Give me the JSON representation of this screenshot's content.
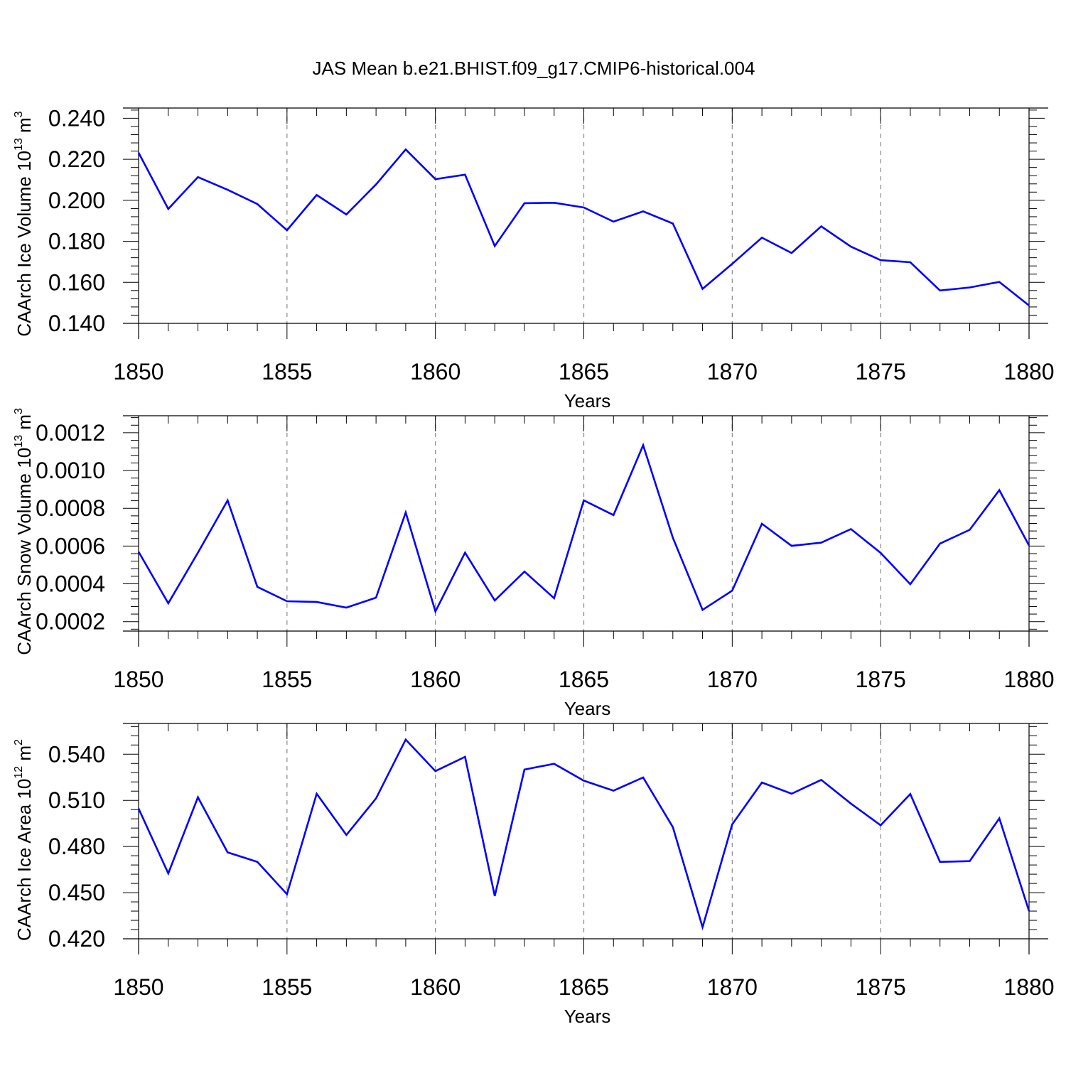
{
  "title": "JAS Mean b.e21.BHIST.f09_g17.CMIP6-historical.004",
  "line_color": "#0000ff",
  "grid_color": "#888888",
  "chart_data": [
    {
      "type": "line",
      "title": "JAS Mean b.e21.BHIST.f09_g17.CMIP6-historical.004",
      "xlabel": "Years",
      "ylabel": "CAArch Ice Volume 10^13 m^3",
      "ylabel_parts": {
        "text": "CAArch Ice Volume 10",
        "exp": "13",
        "unit": " m",
        "unit_exp": "3"
      },
      "xlim": [
        1850,
        1880
      ],
      "ylim": [
        0.14,
        0.245
      ],
      "x_ticks": [
        1850,
        1855,
        1860,
        1865,
        1870,
        1875,
        1880
      ],
      "x_tick_labels": [
        "1850",
        "1855",
        "1860",
        "1865",
        "1870",
        "1875",
        "1880"
      ],
      "y_ticks": [
        0.14,
        0.16,
        0.18,
        0.2,
        0.22,
        0.24
      ],
      "y_tick_labels": [
        "0.140",
        "0.160",
        "0.180",
        "0.200",
        "0.220",
        "0.240"
      ],
      "grid": "vertical dashed at major x ticks",
      "x": [
        1850,
        1851,
        1852,
        1853,
        1854,
        1855,
        1856,
        1857,
        1858,
        1859,
        1860,
        1861,
        1862,
        1863,
        1864,
        1865,
        1866,
        1867,
        1868,
        1869,
        1870,
        1871,
        1872,
        1873,
        1874,
        1875,
        1876,
        1877,
        1878,
        1879,
        1880
      ],
      "series": [
        {
          "name": "CAArch Ice Volume",
          "values": [
            0.2232,
            0.1958,
            0.2113,
            0.2051,
            0.1982,
            0.1854,
            0.2026,
            0.1931,
            0.2077,
            0.2248,
            0.2103,
            0.2125,
            0.1777,
            0.1986,
            0.1988,
            0.1965,
            0.1896,
            0.1946,
            0.1887,
            0.1568,
            0.169,
            0.1818,
            0.1743,
            0.1873,
            0.1774,
            0.1708,
            0.1698,
            0.156,
            0.1575,
            0.1602,
            0.1487
          ]
        }
      ]
    },
    {
      "type": "line",
      "xlabel": "Years",
      "ylabel": "CAArch Snow Volume 10^13 m^3",
      "ylabel_parts": {
        "text": "CAArch Snow Volume 10",
        "exp": "13",
        "unit": " m",
        "unit_exp": "3"
      },
      "xlim": [
        1850,
        1880
      ],
      "ylim": [
        0.00015,
        0.00129
      ],
      "x_ticks": [
        1850,
        1855,
        1860,
        1865,
        1870,
        1875,
        1880
      ],
      "x_tick_labels": [
        "1850",
        "1855",
        "1860",
        "1865",
        "1870",
        "1875",
        "1880"
      ],
      "y_ticks": [
        0.0002,
        0.0004,
        0.0006,
        0.0008,
        0.001,
        0.0012
      ],
      "y_tick_labels": [
        "0.0002",
        "0.0004",
        "0.0006",
        "0.0008",
        "0.0010",
        "0.0012"
      ],
      "grid": "vertical dashed at major x ticks",
      "x": [
        1850,
        1851,
        1852,
        1853,
        1854,
        1855,
        1856,
        1857,
        1858,
        1859,
        1860,
        1861,
        1862,
        1863,
        1864,
        1865,
        1866,
        1867,
        1868,
        1869,
        1870,
        1871,
        1872,
        1873,
        1874,
        1875,
        1876,
        1877,
        1878,
        1879,
        1880
      ],
      "series": [
        {
          "name": "CAArch Snow Volume",
          "values": [
            0.00057,
            0.000297,
            0.000565,
            0.000842,
            0.000384,
            0.000308,
            0.000304,
            0.000274,
            0.000327,
            0.000778,
            0.000254,
            0.000565,
            0.000312,
            0.000465,
            0.000324,
            0.000842,
            0.000764,
            0.001134,
            0.000644,
            0.000262,
            0.000364,
            0.000718,
            0.000601,
            0.000618,
            0.00069,
            0.000564,
            0.000398,
            0.000613,
            0.000686,
            0.000896,
            0.000603
          ]
        }
      ]
    },
    {
      "type": "line",
      "xlabel": "Years",
      "ylabel": "CAArch Ice Area 10^12 m^2",
      "ylabel_parts": {
        "text": "CAArch Ice Area 10",
        "exp": "12",
        "unit": " m",
        "unit_exp": "2"
      },
      "xlim": [
        1850,
        1880
      ],
      "ylim": [
        0.42,
        0.56
      ],
      "x_ticks": [
        1850,
        1855,
        1860,
        1865,
        1870,
        1875,
        1880
      ],
      "x_tick_labels": [
        "1850",
        "1855",
        "1860",
        "1865",
        "1870",
        "1875",
        "1880"
      ],
      "y_ticks": [
        0.42,
        0.45,
        0.48,
        0.51,
        0.54
      ],
      "y_tick_labels": [
        "0.420",
        "0.450",
        "0.480",
        "0.510",
        "0.540"
      ],
      "grid": "vertical dashed at major x ticks",
      "x": [
        1850,
        1851,
        1852,
        1853,
        1854,
        1855,
        1856,
        1857,
        1858,
        1859,
        1860,
        1861,
        1862,
        1863,
        1864,
        1865,
        1866,
        1867,
        1868,
        1869,
        1870,
        1871,
        1872,
        1873,
        1874,
        1875,
        1876,
        1877,
        1878,
        1879,
        1880
      ],
      "series": [
        {
          "name": "CAArch Ice Area",
          "values": [
            0.5047,
            0.4625,
            0.512,
            0.4762,
            0.47,
            0.449,
            0.5143,
            0.4875,
            0.5112,
            0.5495,
            0.529,
            0.5383,
            0.4478,
            0.53,
            0.5338,
            0.5228,
            0.5163,
            0.5249,
            0.4926,
            0.4275,
            0.4944,
            0.5216,
            0.5143,
            0.5233,
            0.5079,
            0.4938,
            0.5141,
            0.47,
            0.4705,
            0.4983,
            0.438
          ]
        }
      ]
    }
  ]
}
